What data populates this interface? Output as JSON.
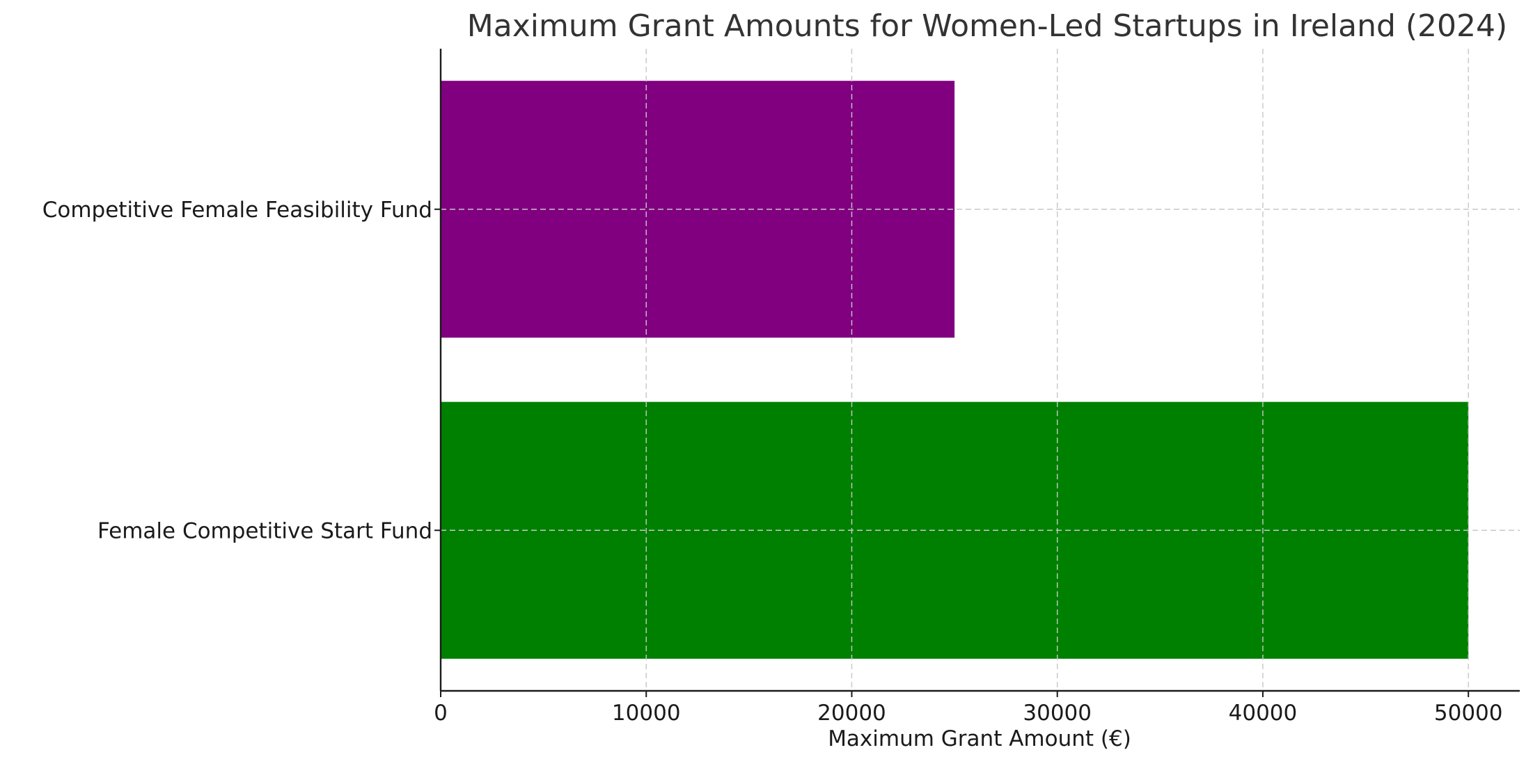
{
  "chart_data": {
    "type": "bar",
    "orientation": "horizontal",
    "title": "Maximum Grant Amounts for Women-Led Startups in Ireland (2024)",
    "xlabel": "Maximum Grant Amount (€)",
    "ylabel": "",
    "categories": [
      "Female Competitive Start Fund",
      "Competitive Female Feasibility Fund"
    ],
    "values": [
      50000,
      25000
    ],
    "colors": [
      "#008000",
      "#800080"
    ],
    "xlim": [
      0,
      52500
    ],
    "xticks": [
      0,
      10000,
      20000,
      30000,
      40000,
      50000
    ],
    "xtick_labels": [
      "0",
      "10000",
      "20000",
      "30000",
      "40000",
      "50000"
    ],
    "grid": true,
    "legend": "none"
  }
}
